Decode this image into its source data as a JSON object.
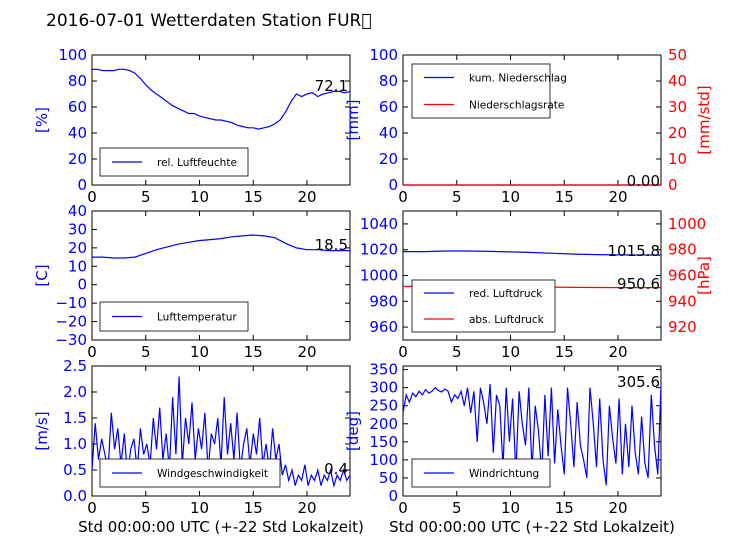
{
  "figure": {
    "title": "2016-07-01 Wetterdaten Station FUR\u0000",
    "colors": {
      "left": "#0000ff",
      "right": "#ff0000",
      "axis": "#000000"
    }
  },
  "chart_data": [
    {
      "type": "line",
      "ylabel": "[%]",
      "ylim": [
        0,
        100
      ],
      "yticks": [
        "0",
        "20",
        "40",
        "60",
        "80",
        "100"
      ],
      "xlim": [
        0,
        24
      ],
      "xticks": [
        "0",
        "5",
        "10",
        "15",
        "20"
      ],
      "xlabel": "",
      "annotation": "72.1",
      "legend": [
        "rel. Luftfeuchte"
      ],
      "series": [
        {
          "name": "rel. Luftfeuchte",
          "axis": "left",
          "x": [
            0,
            0.5,
            1,
            1.5,
            2,
            2.5,
            3,
            3.5,
            4,
            4.5,
            5,
            5.5,
            6,
            6.5,
            7,
            7.5,
            8,
            8.5,
            9,
            9.5,
            10,
            10.5,
            11,
            11.5,
            12,
            12.5,
            13,
            13.5,
            14,
            14.5,
            15,
            15.5,
            16,
            16.5,
            17,
            17.5,
            18,
            18.5,
            19,
            19.5,
            20,
            20.5,
            21,
            21.5,
            22,
            22.5,
            23,
            23.5,
            24
          ],
          "y": [
            89,
            89,
            88,
            88,
            88,
            89,
            89,
            88,
            86,
            82,
            77,
            73,
            70,
            67,
            64,
            61,
            59,
            57,
            55,
            55,
            53,
            52,
            51,
            50,
            50,
            49,
            48,
            46,
            45,
            44,
            44,
            43,
            44,
            45,
            47,
            50,
            56,
            64,
            70,
            68,
            70,
            71,
            68,
            70,
            71,
            72,
            72,
            71,
            72
          ]
        }
      ]
    },
    {
      "type": "line",
      "ylabel": "[mm]",
      "ylabel_right": "[mm/std]",
      "ylim": [
        0,
        100
      ],
      "yticks": [
        "0",
        "20",
        "40",
        "60",
        "80",
        "100"
      ],
      "ylim_right": [
        0,
        50
      ],
      "yticks_right": [
        "0",
        "10",
        "20",
        "30",
        "40",
        "50"
      ],
      "xlim": [
        0,
        24
      ],
      "xticks": [
        "0",
        "5",
        "10",
        "15",
        "20"
      ],
      "xlabel": "",
      "annotation": "0.00",
      "legend": [
        "kum. Niederschlag",
        "Niederschlagsrate"
      ],
      "series": [
        {
          "name": "kum. Niederschlag",
          "axis": "left",
          "x": [
            0,
            24
          ],
          "y": [
            0,
            0
          ]
        },
        {
          "name": "Niederschlagsrate",
          "axis": "right",
          "x": [
            0,
            24
          ],
          "y": [
            0,
            0
          ]
        }
      ]
    },
    {
      "type": "line",
      "ylabel": "[C]",
      "ylim": [
        -30,
        40
      ],
      "yticks": [
        "−30",
        "−20",
        "−10",
        "0",
        "10",
        "20",
        "30",
        "40"
      ],
      "xlim": [
        0,
        24
      ],
      "xticks": [
        "0",
        "5",
        "10",
        "15",
        "20"
      ],
      "xlabel": "",
      "annotation": "18.5",
      "legend": [
        "Lufttemperatur"
      ],
      "series": [
        {
          "name": "Lufttemperatur",
          "axis": "left",
          "x": [
            0,
            1,
            2,
            3,
            4,
            5,
            6,
            7,
            8,
            9,
            10,
            11,
            12,
            13,
            14,
            15,
            16,
            17,
            18,
            19,
            20,
            21,
            22,
            23,
            24
          ],
          "y": [
            15,
            15,
            14.5,
            14.5,
            15,
            17,
            19,
            20.5,
            22,
            23,
            24,
            24.5,
            25,
            26,
            26.5,
            27,
            26.5,
            25.5,
            22.5,
            20,
            19,
            19,
            18.5,
            18.5,
            18.5
          ]
        }
      ]
    },
    {
      "type": "line",
      "ylabel": "",
      "ylabel_right": "[hPa]",
      "ylim": [
        950,
        1050
      ],
      "yticks": [
        "960",
        "980",
        "1000",
        "1020",
        "1040"
      ],
      "ylim_right": [
        910,
        1010
      ],
      "yticks_right": [
        "920",
        "940",
        "960",
        "980",
        "1000"
      ],
      "xlim": [
        0,
        24
      ],
      "xticks": [
        "0",
        "5",
        "10",
        "15",
        "20"
      ],
      "xlabel": "",
      "annotations": [
        "1015.8",
        "950.6"
      ],
      "legend": [
        "red. Luftdruck",
        "abs. Luftdruck"
      ],
      "series": [
        {
          "name": "red. Luftdruck",
          "axis": "left",
          "x": [
            0,
            2,
            4,
            6,
            8,
            10,
            12,
            14,
            16,
            18,
            20,
            22,
            24
          ],
          "y": [
            1018.5,
            1018.5,
            1019,
            1019,
            1018.7,
            1018.3,
            1017.8,
            1017.2,
            1016.6,
            1016.2,
            1016,
            1015.9,
            1015.8
          ]
        },
        {
          "name": "abs. Luftdruck",
          "axis": "right",
          "x": [
            0,
            2,
            4,
            6,
            8,
            10,
            12,
            14,
            16,
            18,
            20,
            22,
            24
          ],
          "y": [
            951.5,
            951.8,
            952,
            952.2,
            952,
            951.6,
            951.2,
            951,
            950.8,
            950.7,
            950.6,
            950.6,
            950.6
          ]
        }
      ]
    },
    {
      "type": "line",
      "ylabel": "[m/s]",
      "ylim": [
        0,
        2.5
      ],
      "yticks": [
        "0.0",
        "0.5",
        "1.0",
        "1.5",
        "2.0",
        "2.5"
      ],
      "xlim": [
        0,
        24
      ],
      "xticks": [
        "0",
        "5",
        "10",
        "15",
        "20"
      ],
      "xlabel": "Std 00:00:00 UTC (+-22 Std Lokalzeit)",
      "annotation": "0.4",
      "legend": [
        "Windgeschwindigkeit"
      ],
      "series": [
        {
          "name": "Windgeschwindigkeit",
          "axis": "left",
          "x": [
            0,
            0.3,
            0.6,
            0.9,
            1.2,
            1.5,
            1.8,
            2.1,
            2.4,
            2.7,
            3,
            3.3,
            3.6,
            3.9,
            4.2,
            4.5,
            4.8,
            5.1,
            5.4,
            5.7,
            6,
            6.3,
            6.6,
            6.9,
            7.2,
            7.5,
            7.8,
            8.1,
            8.4,
            8.7,
            9,
            9.3,
            9.6,
            9.9,
            10.2,
            10.5,
            10.8,
            11.1,
            11.4,
            11.7,
            12,
            12.3,
            12.6,
            12.9,
            13.2,
            13.5,
            13.8,
            14.1,
            14.4,
            14.7,
            15,
            15.3,
            15.6,
            15.9,
            16.2,
            16.5,
            16.8,
            17.1,
            17.4,
            17.7,
            18,
            18.3,
            18.6,
            18.9,
            19.2,
            19.5,
            19.8,
            20.1,
            20.4,
            20.7,
            21,
            21.3,
            21.6,
            21.9,
            22.2,
            22.5,
            22.8,
            23.1,
            23.4,
            23.7,
            24
          ],
          "y": [
            0.5,
            1.4,
            0.7,
            1.1,
            0.8,
            0.5,
            1.6,
            0.9,
            1.3,
            0.6,
            1.2,
            0.4,
            0.9,
            1.1,
            0.5,
            1.3,
            0.8,
            1.0,
            0.6,
            1.5,
            0.9,
            1.7,
            0.7,
            1.2,
            0.5,
            1.9,
            0.8,
            2.3,
            0.6,
            1.5,
            1.0,
            1.8,
            0.7,
            1.3,
            0.9,
            1.6,
            0.5,
            1.2,
            1.0,
            1.5,
            0.6,
            1.9,
            0.8,
            1.4,
            0.7,
            1.6,
            0.5,
            1.0,
            1.3,
            0.6,
            1.2,
            0.8,
            1.5,
            0.6,
            1.0,
            0.5,
            1.3,
            0.7,
            1.0,
            0.4,
            0.6,
            0.3,
            0.5,
            0.2,
            0.4,
            0.3,
            0.6,
            0.2,
            0.4,
            0.3,
            0.5,
            0.2,
            0.4,
            0.3,
            0.5,
            0.2,
            0.4,
            0.3,
            0.5,
            0.3,
            0.4
          ]
        }
      ]
    },
    {
      "type": "line",
      "ylabel": "[deg]",
      "ylim": [
        0,
        360
      ],
      "yticks": [
        "0",
        "50",
        "100",
        "150",
        "200",
        "250",
        "300",
        "350"
      ],
      "xlim": [
        0,
        24
      ],
      "xticks": [
        "0",
        "5",
        "10",
        "15",
        "20"
      ],
      "xlabel": "Std 00:00:00 UTC (+-22 Std Lokalzeit)",
      "annotation": "305.6",
      "legend": [
        "Windrichtung"
      ],
      "series": [
        {
          "name": "Windrichtung",
          "axis": "left",
          "x": [
            0,
            0.3,
            0.6,
            0.9,
            1.2,
            1.5,
            1.8,
            2.1,
            2.4,
            2.7,
            3,
            3.3,
            3.6,
            3.9,
            4.2,
            4.5,
            4.8,
            5.1,
            5.4,
            5.7,
            6,
            6.3,
            6.6,
            6.9,
            7.2,
            7.5,
            7.8,
            8.1,
            8.4,
            8.7,
            9,
            9.3,
            9.6,
            9.9,
            10.2,
            10.5,
            10.8,
            11.1,
            11.4,
            11.7,
            12,
            12.3,
            12.6,
            12.9,
            13.2,
            13.5,
            13.8,
            14.1,
            14.4,
            14.7,
            15,
            15.3,
            15.6,
            15.9,
            16.2,
            16.5,
            16.8,
            17.1,
            17.4,
            17.7,
            18,
            18.3,
            18.6,
            18.9,
            19.2,
            19.5,
            19.8,
            20.1,
            20.4,
            20.7,
            21,
            21.3,
            21.6,
            21.9,
            22.2,
            22.5,
            22.8,
            23.1,
            23.4,
            23.7,
            24
          ],
          "y": [
            230,
            280,
            260,
            285,
            275,
            290,
            280,
            295,
            285,
            290,
            300,
            292,
            288,
            296,
            290,
            260,
            280,
            270,
            290,
            250,
            300,
            230,
            290,
            150,
            300,
            260,
            200,
            310,
            120,
            280,
            250,
            80,
            300,
            150,
            270,
            60,
            290,
            200,
            140,
            300,
            70,
            250,
            180,
            60,
            280,
            110,
            300,
            90,
            240,
            140,
            60,
            300,
            200,
            80,
            260,
            140,
            100,
            50,
            300,
            200,
            80,
            270,
            100,
            30,
            250,
            160,
            90,
            270,
            60,
            200,
            80,
            250,
            120,
            60,
            220,
            90,
            50,
            280,
            140,
            60,
            306
          ]
        }
      ]
    }
  ]
}
